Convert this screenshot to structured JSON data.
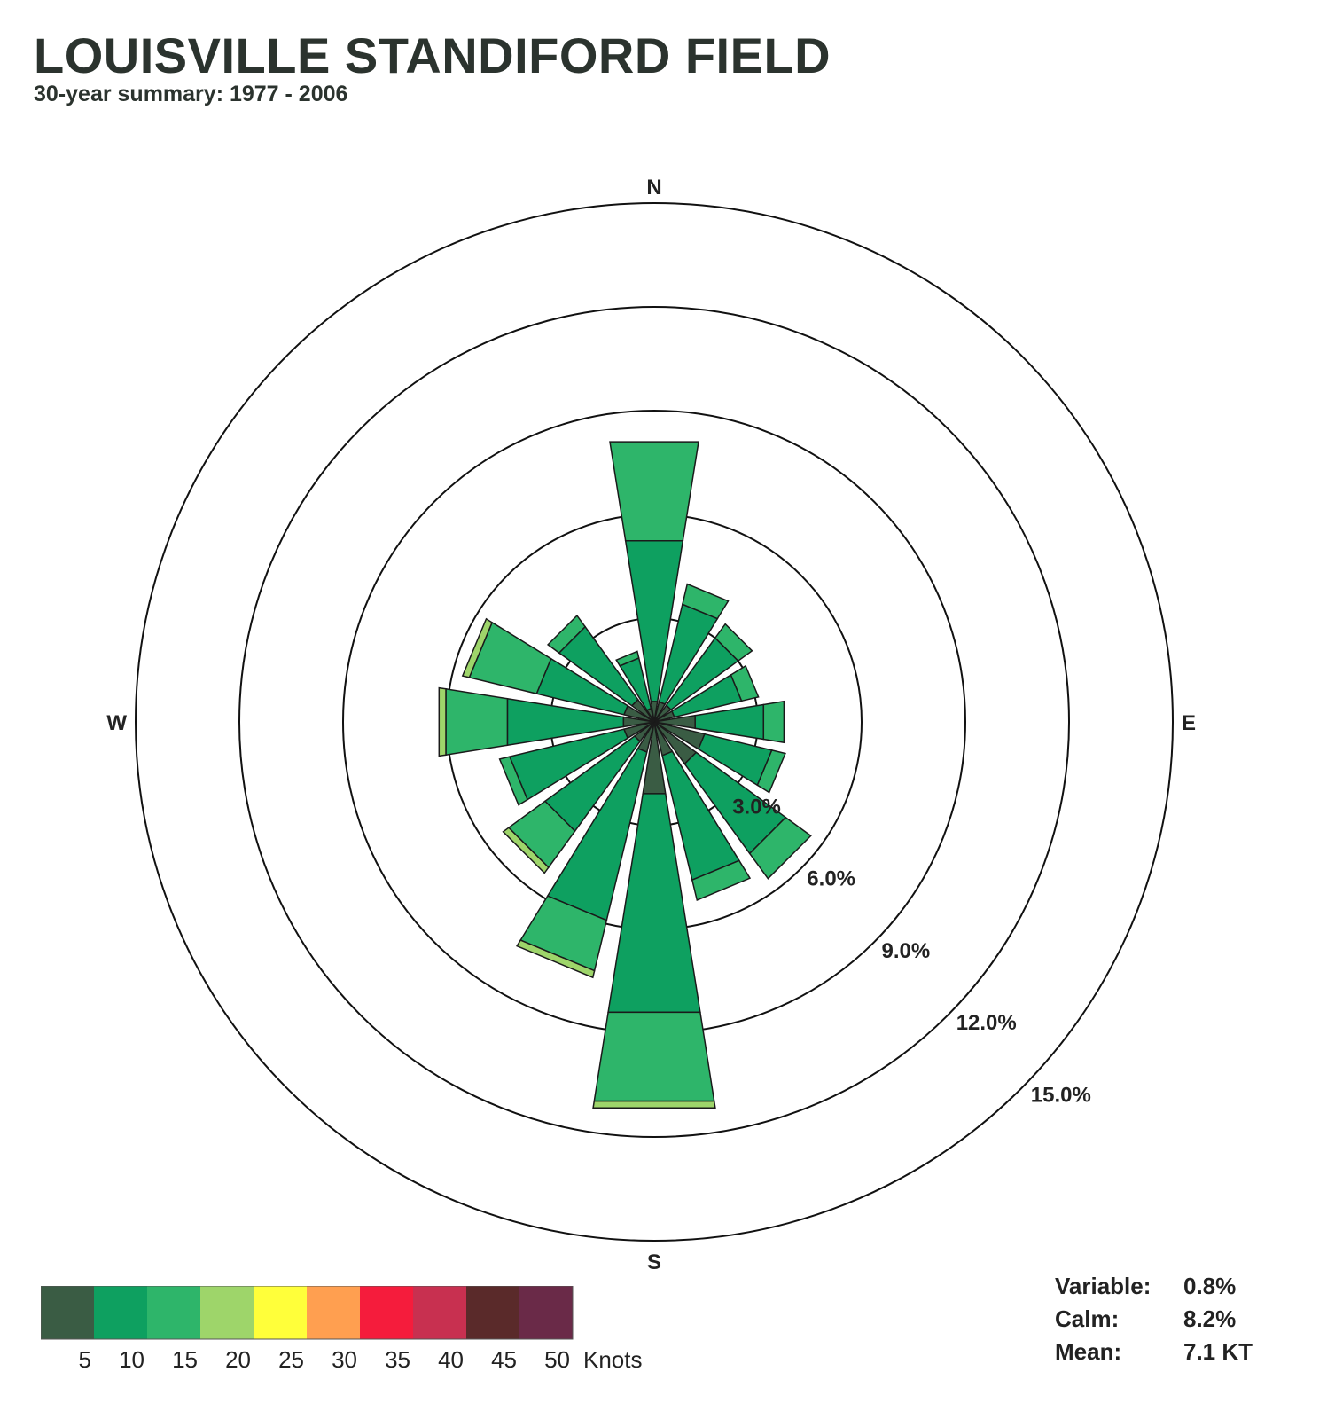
{
  "header": {
    "title": "LOUISVILLE STANDIFORD FIELD",
    "subtitle": "30-year summary: 1977 - 2006"
  },
  "chart_data": {
    "type": "wind-rose",
    "compass": [
      "N",
      "E",
      "S",
      "W"
    ],
    "ring_values": [
      3.0,
      6.0,
      9.0,
      12.0,
      15.0
    ],
    "ring_labels": [
      "3.0%",
      "6.0%",
      "9.0%",
      "12.0%",
      "15.0%"
    ],
    "directions": [
      {
        "dir": 0,
        "segments": [
          0.6,
          4.7,
          2.9,
          0.0
        ]
      },
      {
        "dir": 22.5,
        "segments": [
          0.6,
          2.9,
          0.6,
          0.0
        ]
      },
      {
        "dir": 45,
        "segments": [
          0.6,
          2.4,
          0.5,
          0.0
        ]
      },
      {
        "dir": 67.5,
        "segments": [
          0.6,
          2.0,
          0.5,
          0.0
        ]
      },
      {
        "dir": 90,
        "segments": [
          1.2,
          2.0,
          0.6,
          0.0
        ]
      },
      {
        "dir": 112.5,
        "segments": [
          1.5,
          2.0,
          0.4,
          0.0
        ]
      },
      {
        "dir": 135,
        "segments": [
          1.5,
          3.2,
          0.9,
          0.0
        ]
      },
      {
        "dir": 157.5,
        "segments": [
          1.0,
          3.7,
          0.6,
          0.0
        ]
      },
      {
        "dir": 180,
        "segments": [
          2.1,
          6.4,
          2.6,
          0.2
        ]
      },
      {
        "dir": 202.5,
        "segments": [
          0.9,
          5.0,
          1.5,
          0.2
        ]
      },
      {
        "dir": 225,
        "segments": [
          0.7,
          3.2,
          1.3,
          0.2
        ]
      },
      {
        "dir": 247.5,
        "segments": [
          0.9,
          3.4,
          0.3,
          0.0
        ]
      },
      {
        "dir": 270,
        "segments": [
          0.9,
          3.4,
          1.8,
          0.2
        ]
      },
      {
        "dir": 292.5,
        "segments": [
          0.9,
          2.6,
          2.0,
          0.2
        ]
      },
      {
        "dir": 315,
        "segments": [
          0.8,
          2.6,
          0.4,
          0.0
        ]
      },
      {
        "dir": 337.5,
        "segments": [
          0.4,
          1.5,
          0.2,
          0.0
        ]
      }
    ],
    "speed_bins": [
      {
        "lo": 0,
        "hi": 5,
        "color": "#3a5c44"
      },
      {
        "lo": 5,
        "hi": 10,
        "color": "#0ea060"
      },
      {
        "lo": 10,
        "hi": 15,
        "color": "#2eb56a"
      },
      {
        "lo": 15,
        "hi": 20,
        "color": "#9ed56a"
      },
      {
        "lo": 20,
        "hi": 25,
        "color": "#ffff3a"
      },
      {
        "lo": 25,
        "hi": 30,
        "color": "#ff9f50"
      },
      {
        "lo": 30,
        "hi": 35,
        "color": "#f51c3c"
      },
      {
        "lo": 35,
        "hi": 40,
        "color": "#c83050"
      },
      {
        "lo": 40,
        "hi": 45,
        "color": "#5a2a2a"
      },
      {
        "lo": 45,
        "hi": 50,
        "color": "#6a2a48"
      }
    ],
    "legend_ticks": [
      "5",
      "10",
      "15",
      "20",
      "25",
      "30",
      "35",
      "40",
      "45",
      "50"
    ],
    "legend_unit": "Knots"
  },
  "stats": {
    "variable_label": "Variable:",
    "variable_value": "0.8%",
    "calm_label": "Calm:",
    "calm_value": "8.2%",
    "mean_label": "Mean:",
    "mean_value": "7.1 KT"
  }
}
